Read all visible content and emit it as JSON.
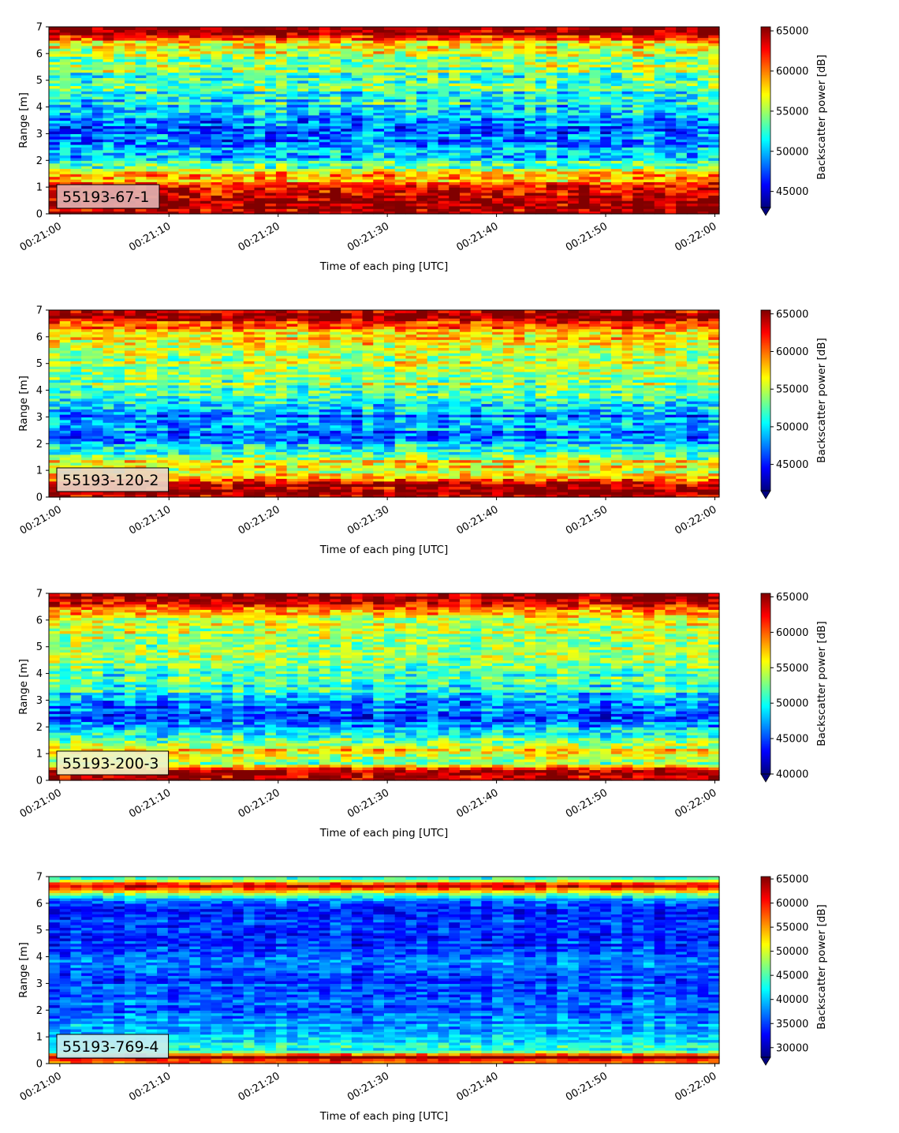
{
  "chart_data": [
    {
      "type": "heatmap",
      "label": "55193-67-1",
      "label_color": "#e2b0b0",
      "xlabel": "Time of each ping [UTC]",
      "ylabel": "Range [m]",
      "xlim": [
        "00:21:00",
        "00:22:00"
      ],
      "x_ticks": [
        "00:21:00",
        "00:21:10",
        "00:21:20",
        "00:21:30",
        "00:21:40",
        "00:21:50",
        "00:22:00"
      ],
      "ylim": [
        0,
        7
      ],
      "y_ticks": [
        "0",
        "1",
        "2",
        "3",
        "4",
        "5",
        "6",
        "7"
      ],
      "colorbar": {
        "label": "Backscatter power [dB]",
        "range": [
          43000,
          65500
        ],
        "ticks": [
          "45000",
          "50000",
          "55000",
          "60000",
          "65000"
        ],
        "tick_values": [
          45000,
          50000,
          55000,
          60000,
          65000
        ],
        "colormap": "jet",
        "extend": "min"
      },
      "range_profile": [
        {
          "range": 0.1,
          "value": 65000
        },
        {
          "range": 0.5,
          "value": 65000
        },
        {
          "range": 0.9,
          "value": 64000
        },
        {
          "range": 1.2,
          "value": 60000
        },
        {
          "range": 1.5,
          "value": 58500
        },
        {
          "range": 1.9,
          "value": 52000
        },
        {
          "range": 2.5,
          "value": 49000
        },
        {
          "range": 3.0,
          "value": 48000
        },
        {
          "range": 3.5,
          "value": 49000
        },
        {
          "range": 4.0,
          "value": 51500
        },
        {
          "range": 4.5,
          "value": 52500
        },
        {
          "range": 5.0,
          "value": 53000
        },
        {
          "range": 5.5,
          "value": 54500
        },
        {
          "range": 6.0,
          "value": 56000
        },
        {
          "range": 6.4,
          "value": 58500
        },
        {
          "range": 6.7,
          "value": 64000
        },
        {
          "range": 7.0,
          "value": 65000
        }
      ]
    },
    {
      "type": "heatmap",
      "label": "55193-120-2",
      "label_color": "#ecd4c4",
      "xlabel": "Time of each ping [UTC]",
      "ylabel": "Range [m]",
      "xlim": [
        "00:21:00",
        "00:22:00"
      ],
      "x_ticks": [
        "00:21:00",
        "00:21:10",
        "00:21:20",
        "00:21:30",
        "00:21:40",
        "00:21:50",
        "00:22:00"
      ],
      "ylim": [
        0,
        7
      ],
      "y_ticks": [
        "0",
        "1",
        "2",
        "3",
        "4",
        "5",
        "6",
        "7"
      ],
      "colorbar": {
        "label": "Backscatter power [dB]",
        "range": [
          41500,
          65500
        ],
        "ticks": [
          "45000",
          "50000",
          "55000",
          "60000",
          "65000"
        ],
        "tick_values": [
          45000,
          50000,
          55000,
          60000,
          65000
        ],
        "colormap": "jet",
        "extend": "min"
      },
      "range_profile": [
        {
          "range": 0.1,
          "value": 65000
        },
        {
          "range": 0.5,
          "value": 64500
        },
        {
          "range": 0.9,
          "value": 56000
        },
        {
          "range": 1.3,
          "value": 57000
        },
        {
          "range": 1.7,
          "value": 50000
        },
        {
          "range": 2.0,
          "value": 49000
        },
        {
          "range": 2.3,
          "value": 47000
        },
        {
          "range": 2.8,
          "value": 50000
        },
        {
          "range": 3.1,
          "value": 47000
        },
        {
          "range": 3.6,
          "value": 52000
        },
        {
          "range": 4.2,
          "value": 53500
        },
        {
          "range": 5.0,
          "value": 55000
        },
        {
          "range": 5.7,
          "value": 56000
        },
        {
          "range": 6.2,
          "value": 57500
        },
        {
          "range": 6.5,
          "value": 62000
        },
        {
          "range": 6.8,
          "value": 65000
        },
        {
          "range": 7.0,
          "value": 65000
        }
      ]
    },
    {
      "type": "heatmap",
      "label": "55193-200-3",
      "label_color": "#f2f2c4",
      "xlabel": "Time of each ping [UTC]",
      "ylabel": "Range [m]",
      "xlim": [
        "00:21:00",
        "00:22:00"
      ],
      "x_ticks": [
        "00:21:00",
        "00:21:10",
        "00:21:20",
        "00:21:30",
        "00:21:40",
        "00:21:50",
        "00:22:00"
      ],
      "ylim": [
        0,
        7
      ],
      "y_ticks": [
        "0",
        "1",
        "2",
        "3",
        "4",
        "5",
        "6",
        "7"
      ],
      "colorbar": {
        "label": "Backscatter power [dB]",
        "range": [
          40000,
          65500
        ],
        "ticks": [
          "40000",
          "45000",
          "50000",
          "55000",
          "60000",
          "65000"
        ],
        "tick_values": [
          40000,
          45000,
          50000,
          55000,
          60000,
          65000
        ],
        "colormap": "jet",
        "extend": "min"
      },
      "range_profile": [
        {
          "range": 0.1,
          "value": 65000
        },
        {
          "range": 0.4,
          "value": 63000
        },
        {
          "range": 0.7,
          "value": 52000
        },
        {
          "range": 1.2,
          "value": 56000
        },
        {
          "range": 1.6,
          "value": 50000
        },
        {
          "range": 2.0,
          "value": 47000
        },
        {
          "range": 2.4,
          "value": 45500
        },
        {
          "range": 2.9,
          "value": 47000
        },
        {
          "range": 3.4,
          "value": 50000
        },
        {
          "range": 4.0,
          "value": 51500
        },
        {
          "range": 4.6,
          "value": 52500
        },
        {
          "range": 5.2,
          "value": 53500
        },
        {
          "range": 5.8,
          "value": 54500
        },
        {
          "range": 6.3,
          "value": 57000
        },
        {
          "range": 6.6,
          "value": 63000
        },
        {
          "range": 6.8,
          "value": 65000
        },
        {
          "range": 7.0,
          "value": 65000
        }
      ]
    },
    {
      "type": "heatmap",
      "label": "55193-769-4",
      "label_color": "#c6ecf2",
      "xlabel": "Time of each ping [UTC]",
      "ylabel": "Range [m]",
      "xlim": [
        "00:21:00",
        "00:22:00"
      ],
      "x_ticks": [
        "00:21:00",
        "00:21:10",
        "00:21:20",
        "00:21:30",
        "00:21:40",
        "00:21:50",
        "00:22:00"
      ],
      "ylim": [
        0,
        7
      ],
      "y_ticks": [
        "0",
        "1",
        "2",
        "3",
        "4",
        "5",
        "6",
        "7"
      ],
      "colorbar": {
        "label": "Backscatter power [dB]",
        "range": [
          28000,
          65500
        ],
        "ticks": [
          "30000",
          "35000",
          "40000",
          "45000",
          "50000",
          "55000",
          "60000",
          "65000"
        ],
        "tick_values": [
          30000,
          35000,
          40000,
          45000,
          50000,
          55000,
          60000,
          65000
        ],
        "colormap": "jet",
        "extend": "min"
      },
      "range_profile": [
        {
          "range": 0.1,
          "value": 57000
        },
        {
          "range": 0.25,
          "value": 65000
        },
        {
          "range": 0.5,
          "value": 43000
        },
        {
          "range": 0.9,
          "value": 42000
        },
        {
          "range": 1.3,
          "value": 39500
        },
        {
          "range": 1.8,
          "value": 37000
        },
        {
          "range": 2.5,
          "value": 36000
        },
        {
          "range": 3.2,
          "value": 35500
        },
        {
          "range": 3.7,
          "value": 37500
        },
        {
          "range": 4.3,
          "value": 34500
        },
        {
          "range": 5.0,
          "value": 34000
        },
        {
          "range": 5.6,
          "value": 34500
        },
        {
          "range": 6.1,
          "value": 36000
        },
        {
          "range": 6.45,
          "value": 52000
        },
        {
          "range": 6.7,
          "value": 63000
        },
        {
          "range": 6.9,
          "value": 45000
        },
        {
          "range": 7.0,
          "value": 43000
        }
      ]
    }
  ]
}
